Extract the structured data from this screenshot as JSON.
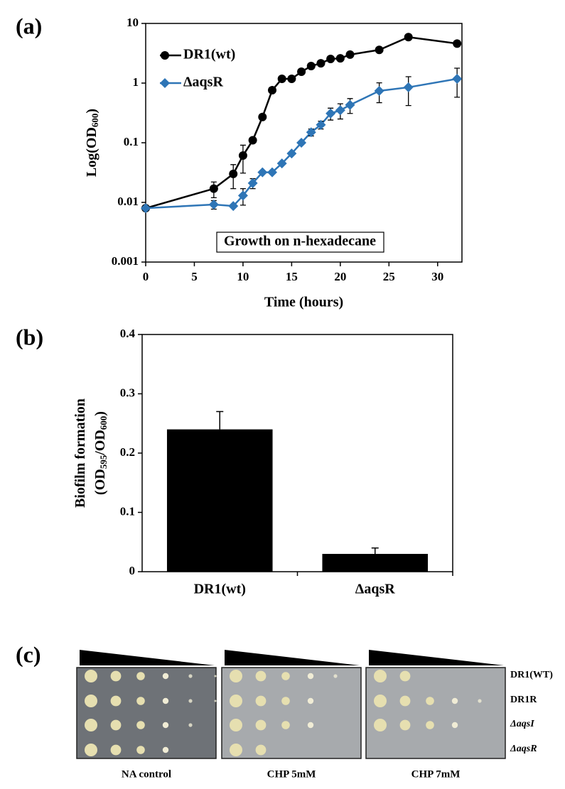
{
  "chart_data": [
    {
      "type": "line",
      "panel": "(a)",
      "log_y": true,
      "xlabel": "Time (hours)",
      "ylabel": [
        "Log(OD",
        "600",
        ")"
      ],
      "annotation": "Growth on n-hexadecane",
      "xlim": [
        0,
        32.5
      ],
      "xticks": [
        0,
        5,
        10,
        15,
        20,
        25,
        30
      ],
      "ylim": [
        0.001,
        10
      ],
      "yticks": [
        0.001,
        0.01,
        0.1,
        1,
        10
      ],
      "legend": "upper left",
      "series": [
        {
          "name": "DR1(wt)",
          "color": "#000000",
          "marker": "circle",
          "x": [
            0,
            7,
            9,
            10,
            11,
            12,
            13,
            14,
            15,
            16,
            17,
            18,
            19,
            20,
            21,
            24,
            27,
            32
          ],
          "values": [
            0.008,
            0.017,
            0.03,
            0.061,
            0.11,
            0.27,
            0.76,
            1.18,
            1.18,
            1.55,
            1.93,
            2.15,
            2.54,
            2.6,
            3.0,
            3.6,
            5.9,
            4.6
          ],
          "errors": [
            null,
            0.005,
            0.013,
            0.03,
            null,
            null,
            null,
            null,
            null,
            null,
            null,
            null,
            null,
            null,
            null,
            null,
            null,
            null
          ]
        },
        {
          "name": "ΔaqsR",
          "color": "#2e75b6",
          "marker": "diamond",
          "x": [
            0,
            7,
            9,
            10,
            11,
            12,
            13,
            14,
            15,
            16,
            17,
            18,
            19,
            20,
            21,
            24,
            27,
            32
          ],
          "values": [
            0.008,
            0.0092,
            0.0087,
            0.013,
            0.021,
            0.032,
            0.032,
            0.045,
            0.066,
            0.1,
            0.15,
            0.2,
            0.31,
            0.35,
            0.43,
            0.74,
            0.85,
            1.18
          ],
          "errors": [
            null,
            0.0015,
            null,
            0.004,
            0.004,
            null,
            null,
            null,
            null,
            null,
            0.02,
            0.03,
            0.07,
            0.1,
            0.12,
            0.27,
            0.43,
            0.6
          ]
        }
      ]
    },
    {
      "type": "bar",
      "panel": "(b)",
      "ylabel": [
        "Biofilm formation",
        "(OD",
        "595",
        "/OD",
        "600",
        ")"
      ],
      "categories": [
        "DR1(wt)",
        "ΔaqsR"
      ],
      "values": [
        0.24,
        0.03
      ],
      "errors": [
        0.03,
        0.01
      ],
      "color": "#000000",
      "ylim": [
        0,
        0.4
      ],
      "yticks": [
        0,
        0.1,
        0.2,
        0.3,
        0.4
      ]
    }
  ],
  "plates": {
    "panel": "(c)",
    "conditions": [
      "NA control",
      "CHP 5mM",
      "CHP 7mM"
    ],
    "strains": [
      "DR1(WT)",
      "DR1R",
      "ΔaqsI",
      "ΔaqsR"
    ]
  }
}
